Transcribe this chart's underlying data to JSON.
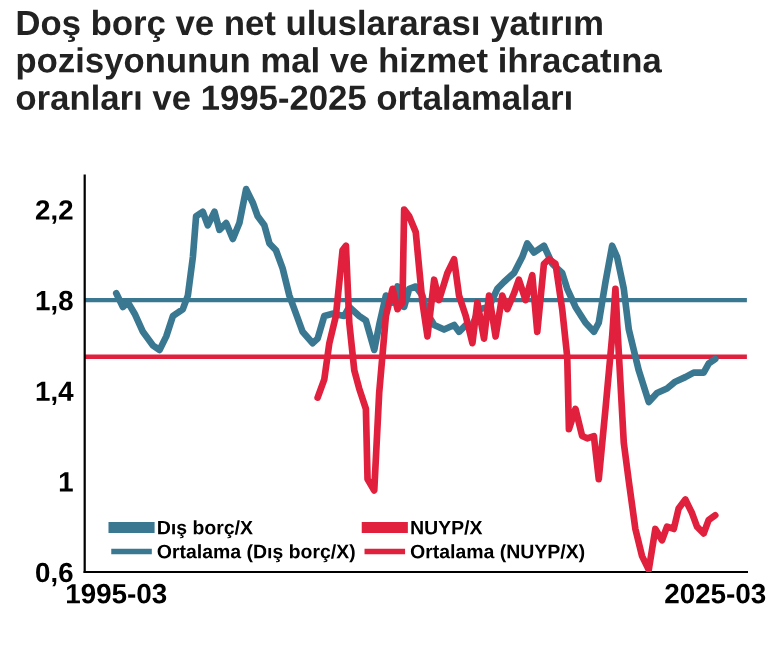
{
  "chart_data": {
    "type": "line",
    "title": "Doş borç ve net uluslararası yatırım pozisyonunun mal ve hizmet ihracatına oranları ve 1995-2025 ortalamaları",
    "series": [
      {
        "name": "Dış borç/X",
        "color": "#3a7891",
        "x": [
          "1995-03",
          "1995-07",
          "1995-10",
          "1996-02",
          "1996-07",
          "1997-01",
          "1997-05",
          "1997-09",
          "1998-01",
          "1998-07",
          "1998-10",
          "1999-01",
          "1999-03",
          "1999-07",
          "1999-10",
          "2000-02",
          "2000-05",
          "2000-09",
          "2001-01",
          "2001-05",
          "2001-09",
          "2002-01",
          "2002-04",
          "2002-08",
          "2002-11",
          "2003-03",
          "2003-07",
          "2003-11",
          "2004-03",
          "2004-07",
          "2005-01",
          "2005-04",
          "2005-08",
          "2006-01",
          "2006-08",
          "2006-11",
          "2007-05",
          "2007-09",
          "2008-02",
          "2008-05",
          "2008-09",
          "2009-01",
          "2009-04",
          "2009-08",
          "2009-11",
          "2010-03",
          "2010-07",
          "2010-10",
          "2011-02",
          "2011-08",
          "2012-02",
          "2012-05",
          "2012-09",
          "2013-01",
          "2013-05",
          "2013-11",
          "2014-04",
          "2014-08",
          "2015-02",
          "2015-07",
          "2015-10",
          "2016-02",
          "2016-08",
          "2017-01",
          "2017-07",
          "2017-10",
          "2018-03",
          "2018-09",
          "2019-02",
          "2019-05",
          "2019-09",
          "2020-01",
          "2020-04",
          "2020-08",
          "2020-11",
          "2021-05",
          "2021-11",
          "2022-04",
          "2022-10",
          "2023-03",
          "2023-09",
          "2024-02",
          "2024-08",
          "2024-11",
          "2025-03"
        ],
        "values": [
          1.83,
          1.77,
          1.79,
          1.74,
          1.66,
          1.6,
          1.58,
          1.64,
          1.73,
          1.76,
          1.82,
          1.99,
          2.17,
          2.19,
          2.13,
          2.19,
          2.11,
          2.14,
          2.07,
          2.14,
          2.29,
          2.23,
          2.17,
          2.13,
          2.05,
          2.02,
          1.94,
          1.82,
          1.74,
          1.66,
          1.61,
          1.63,
          1.73,
          1.74,
          1.73,
          1.77,
          1.73,
          1.71,
          1.58,
          1.69,
          1.82,
          1.79,
          1.86,
          1.77,
          1.85,
          1.86,
          1.82,
          1.74,
          1.69,
          1.67,
          1.69,
          1.66,
          1.69,
          1.69,
          1.76,
          1.77,
          1.85,
          1.88,
          1.92,
          1.99,
          2.05,
          2.01,
          2.04,
          1.96,
          1.92,
          1.85,
          1.77,
          1.7,
          1.66,
          1.7,
          1.88,
          2.04,
          1.99,
          1.85,
          1.67,
          1.49,
          1.35,
          1.39,
          1.41,
          1.44,
          1.46,
          1.48,
          1.48,
          1.52,
          1.54
        ]
      },
      {
        "name": "NUYP/X",
        "color": "#e0203c",
        "x": [
          "2005-04",
          "2005-08",
          "2005-11",
          "2006-03",
          "2006-07",
          "2006-09",
          "2006-11",
          "2007-02",
          "2007-05",
          "2007-09",
          "2007-10",
          "2008-02",
          "2008-05",
          "2008-09",
          "2009-01",
          "2009-04",
          "2009-07",
          "2009-08",
          "2009-11",
          "2010-03",
          "2010-07",
          "2010-10",
          "2011-02",
          "2011-05",
          "2011-10",
          "2012-02",
          "2012-05",
          "2012-09",
          "2013-01",
          "2013-04",
          "2013-08",
          "2013-11",
          "2014-03",
          "2014-07",
          "2014-10",
          "2015-02",
          "2015-05",
          "2015-09",
          "2016-01",
          "2016-04",
          "2016-08",
          "2016-11",
          "2017-03",
          "2017-07",
          "2017-10",
          "2017-11",
          "2018-03",
          "2018-07",
          "2018-10",
          "2019-02",
          "2019-05",
          "2019-09",
          "2020-01",
          "2020-03",
          "2020-04",
          "2020-08",
          "2020-11",
          "2021-03",
          "2021-07",
          "2021-11",
          "2022-03",
          "2022-07",
          "2022-10",
          "2023-02",
          "2023-05",
          "2023-09",
          "2024-01",
          "2024-04",
          "2024-08",
          "2024-11",
          "2025-03"
        ],
        "values": [
          1.37,
          1.45,
          1.61,
          1.73,
          2.02,
          2.04,
          1.7,
          1.49,
          1.41,
          1.32,
          1.01,
          0.96,
          1.39,
          1.73,
          1.85,
          1.76,
          1.79,
          2.2,
          2.17,
          2.1,
          1.79,
          1.64,
          1.89,
          1.8,
          1.92,
          1.98,
          1.82,
          1.73,
          1.61,
          1.79,
          1.63,
          1.82,
          1.64,
          1.82,
          1.76,
          1.83,
          1.89,
          1.8,
          1.91,
          1.66,
          1.96,
          1.98,
          1.96,
          1.76,
          1.55,
          1.23,
          1.32,
          1.2,
          1.19,
          1.2,
          1.01,
          1.32,
          1.64,
          1.85,
          1.7,
          1.17,
          1.0,
          0.79,
          0.67,
          0.61,
          0.79,
          0.74,
          0.8,
          0.79,
          0.88,
          0.92,
          0.86,
          0.8,
          0.77,
          0.83,
          0.85
        ]
      }
    ],
    "ref_lines": [
      {
        "axis": "y",
        "value": 1.8,
        "label": "Ortalama (Dış borç/X)",
        "color": "#3a7891"
      },
      {
        "axis": "y",
        "value": 1.55,
        "label": "Ortalama (NUYP/X)",
        "color": "#e0203c"
      }
    ],
    "xlim": [
      "1993-08",
      "2026-10"
    ],
    "xticks": [
      "1995-03",
      "2025-03"
    ],
    "ylim": [
      0.6,
      2.35
    ],
    "yticks": [
      {
        "value": 0.6,
        "label": "0,6"
      },
      {
        "value": 1,
        "label": "1"
      },
      {
        "value": 1.4,
        "label": "1,4"
      },
      {
        "value": 1.8,
        "label": "1,8"
      },
      {
        "value": 2.2,
        "label": "2,2"
      }
    ],
    "grid": false,
    "legend": "bottom",
    "line_style": "solid",
    "marker": "none"
  }
}
